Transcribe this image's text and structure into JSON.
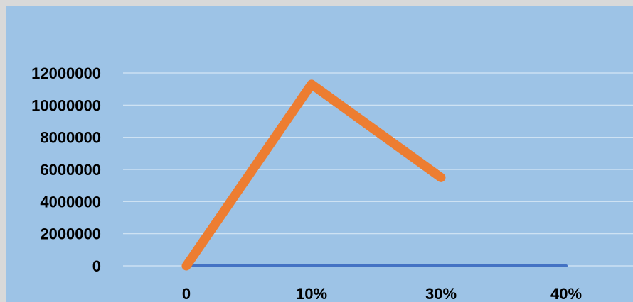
{
  "chart_data": {
    "type": "line",
    "categories": [
      "0",
      "10%",
      "30%",
      "40%"
    ],
    "series": [
      {
        "values": [
          0,
          11300000,
          5500000,
          null
        ],
        "color": "#ed7d31"
      },
      {
        "values": [
          0,
          0,
          0,
          0
        ],
        "color": "#4472c4"
      }
    ],
    "title": "",
    "xlabel": "",
    "ylabel": "",
    "ylim": [
      0,
      12000000
    ],
    "yticks": [
      "0",
      "2000000",
      "4000000",
      "6000000",
      "8000000",
      "10000000",
      "12000000"
    ],
    "grid": true,
    "background": "#9dc3e6",
    "gridline_color": "#d6e6f5"
  }
}
